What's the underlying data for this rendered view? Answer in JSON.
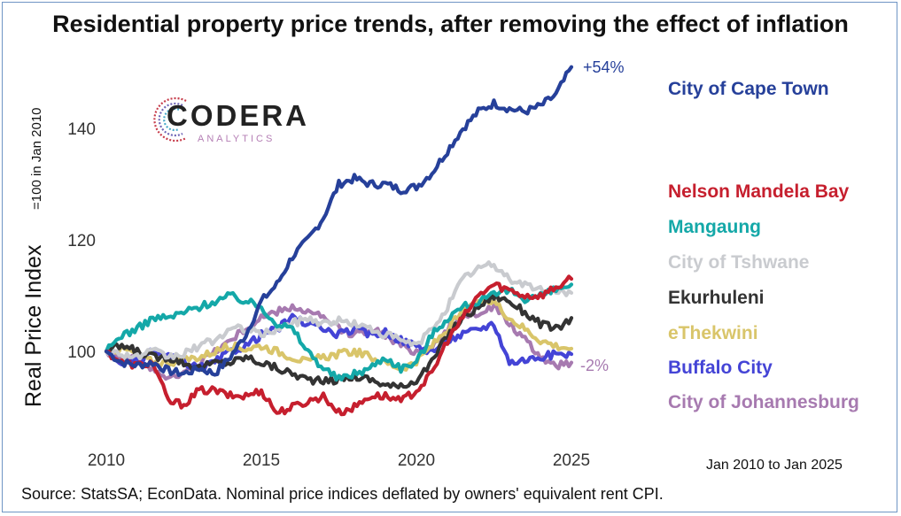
{
  "title": "Residential property price trends, after removing the effect of inflation",
  "source": "Source: StatsSA; EconData. Nominal price indices deflated by owners' equivalent rent CPI.",
  "period": "Jan 2010 to Jan 2025",
  "logo": {
    "name": "CODERA",
    "sub": "ANALYTICS"
  },
  "chart_data": {
    "type": "line",
    "ylabel": "Real Price Index",
    "ylabel_note": "=100 in Jan 2010",
    "xlim": [
      2010,
      2025.3
    ],
    "ylim": [
      88,
      152
    ],
    "x_ticks": [
      2010,
      2015,
      2020,
      2025
    ],
    "y_ticks": [
      100,
      120,
      140
    ],
    "grid": false,
    "annotations": [
      {
        "text": "+54%",
        "x": 2025,
        "y": 151,
        "color": "#26409a"
      },
      {
        "text": "-2%",
        "x": 2025,
        "y": 98,
        "color": "#a77ab0"
      }
    ],
    "series": [
      {
        "name": "City of Cape Town",
        "color": "#26409a",
        "points": [
          [
            2010,
            100
          ],
          [
            2010.5,
            98
          ],
          [
            2011,
            97.5
          ],
          [
            2011.5,
            98
          ],
          [
            2012,
            96.5
          ],
          [
            2012.5,
            96
          ],
          [
            2013,
            97
          ],
          [
            2013.5,
            96
          ],
          [
            2014,
            99
          ],
          [
            2014.5,
            103
          ],
          [
            2015,
            109
          ],
          [
            2015.5,
            112
          ],
          [
            2016,
            117
          ],
          [
            2016.5,
            120
          ],
          [
            2017,
            124
          ],
          [
            2017.5,
            130
          ],
          [
            2018,
            131
          ],
          [
            2018.5,
            130
          ],
          [
            2019,
            130
          ],
          [
            2019.5,
            129
          ],
          [
            2020,
            129.5
          ],
          [
            2020.5,
            132
          ],
          [
            2021,
            136
          ],
          [
            2021.5,
            140
          ],
          [
            2022,
            143
          ],
          [
            2022.5,
            144.5
          ],
          [
            2023,
            143.5
          ],
          [
            2023.5,
            143
          ],
          [
            2024,
            144
          ],
          [
            2024.5,
            146
          ],
          [
            2025,
            151
          ]
        ]
      },
      {
        "name": "Nelson Mandela Bay",
        "color": "#c61f2e",
        "points": [
          [
            2010,
            100
          ],
          [
            2010.5,
            98
          ],
          [
            2011,
            97.5
          ],
          [
            2011.5,
            98
          ],
          [
            2012,
            91
          ],
          [
            2012.5,
            90.5
          ],
          [
            2013,
            93
          ],
          [
            2013.5,
            93
          ],
          [
            2014,
            92
          ],
          [
            2014.5,
            92
          ],
          [
            2015,
            93
          ],
          [
            2015.5,
            89
          ],
          [
            2016,
            90
          ],
          [
            2016.5,
            91
          ],
          [
            2017,
            92
          ],
          [
            2017.5,
            89
          ],
          [
            2018,
            90
          ],
          [
            2018.5,
            92
          ],
          [
            2019,
            92
          ],
          [
            2019.5,
            91
          ],
          [
            2020,
            93
          ],
          [
            2020.5,
            96
          ],
          [
            2021,
            102
          ],
          [
            2021.5,
            106
          ],
          [
            2022,
            110
          ],
          [
            2022.5,
            112
          ],
          [
            2023,
            111
          ],
          [
            2023.5,
            110
          ],
          [
            2024,
            110
          ],
          [
            2024.5,
            111.5
          ],
          [
            2025,
            113
          ]
        ]
      },
      {
        "name": "Mangaung",
        "color": "#14a8a8",
        "points": [
          [
            2010,
            100
          ],
          [
            2010.5,
            103
          ],
          [
            2011,
            104
          ],
          [
            2011.5,
            106
          ],
          [
            2012,
            106
          ],
          [
            2012.5,
            107
          ],
          [
            2013,
            108
          ],
          [
            2013.5,
            109
          ],
          [
            2014,
            110
          ],
          [
            2014.5,
            109
          ],
          [
            2015,
            108
          ],
          [
            2015.5,
            105
          ],
          [
            2016,
            104
          ],
          [
            2016.5,
            100
          ],
          [
            2017,
            97
          ],
          [
            2017.5,
            95
          ],
          [
            2018,
            96
          ],
          [
            2018.5,
            97
          ],
          [
            2019,
            99
          ],
          [
            2019.5,
            97
          ],
          [
            2020,
            98
          ],
          [
            2020.5,
            103
          ],
          [
            2021,
            106
          ],
          [
            2021.5,
            108
          ],
          [
            2022,
            109
          ],
          [
            2022.5,
            110
          ],
          [
            2023,
            111
          ],
          [
            2023.5,
            109.5
          ],
          [
            2024,
            110
          ],
          [
            2024.5,
            111
          ],
          [
            2025,
            112
          ]
        ]
      },
      {
        "name": "City of Tshwane",
        "color": "#c9cbcf",
        "points": [
          [
            2010,
            100
          ],
          [
            2010.5,
            99.5
          ],
          [
            2011,
            99
          ],
          [
            2011.5,
            100
          ],
          [
            2012,
            99
          ],
          [
            2012.5,
            99.5
          ],
          [
            2013,
            101
          ],
          [
            2013.5,
            102
          ],
          [
            2014,
            104
          ],
          [
            2014.5,
            104
          ],
          [
            2015,
            103
          ],
          [
            2015.5,
            104
          ],
          [
            2016,
            105
          ],
          [
            2016.5,
            106
          ],
          [
            2017,
            105
          ],
          [
            2017.5,
            105.5
          ],
          [
            2018,
            105
          ],
          [
            2018.5,
            104
          ],
          [
            2019,
            103
          ],
          [
            2019.5,
            102
          ],
          [
            2020,
            101
          ],
          [
            2020.5,
            104
          ],
          [
            2021,
            108
          ],
          [
            2021.5,
            113
          ],
          [
            2022,
            115
          ],
          [
            2022.5,
            115.5
          ],
          [
            2023,
            113
          ],
          [
            2023.5,
            112
          ],
          [
            2024,
            111
          ],
          [
            2024.5,
            111
          ],
          [
            2025,
            110.5
          ]
        ]
      },
      {
        "name": "Ekurhuleni",
        "color": "#333333",
        "points": [
          [
            2010,
            100
          ],
          [
            2010.5,
            101
          ],
          [
            2011,
            100
          ],
          [
            2011.5,
            99
          ],
          [
            2012,
            99
          ],
          [
            2012.5,
            98
          ],
          [
            2013,
            97
          ],
          [
            2013.5,
            98
          ],
          [
            2014,
            98
          ],
          [
            2014.5,
            99
          ],
          [
            2015,
            98
          ],
          [
            2015.5,
            97
          ],
          [
            2016,
            96
          ],
          [
            2016.5,
            95
          ],
          [
            2017,
            94.5
          ],
          [
            2017.5,
            95
          ],
          [
            2018,
            95.5
          ],
          [
            2018.5,
            95
          ],
          [
            2019,
            94
          ],
          [
            2019.5,
            93.5
          ],
          [
            2020,
            95
          ],
          [
            2020.5,
            98
          ],
          [
            2021,
            103
          ],
          [
            2021.5,
            106
          ],
          [
            2022,
            108
          ],
          [
            2022.5,
            110
          ],
          [
            2023,
            109
          ],
          [
            2023.5,
            107
          ],
          [
            2024,
            105
          ],
          [
            2024.5,
            104
          ],
          [
            2025,
            106
          ]
        ]
      },
      {
        "name": "eThekwini",
        "color": "#d9c56a",
        "points": [
          [
            2010,
            100
          ],
          [
            2010.5,
            100.5
          ],
          [
            2011,
            99.5
          ],
          [
            2011.5,
            98
          ],
          [
            2012,
            98
          ],
          [
            2012.5,
            98.5
          ],
          [
            2013,
            99
          ],
          [
            2013.5,
            100
          ],
          [
            2014,
            101
          ],
          [
            2014.5,
            100.5
          ],
          [
            2015,
            101
          ],
          [
            2015.5,
            100
          ],
          [
            2016,
            99
          ],
          [
            2016.5,
            98
          ],
          [
            2017,
            99
          ],
          [
            2017.5,
            99.5
          ],
          [
            2018,
            100
          ],
          [
            2018.5,
            99
          ],
          [
            2019,
            98
          ],
          [
            2019.5,
            97
          ],
          [
            2020,
            98
          ],
          [
            2020.5,
            101
          ],
          [
            2021,
            104
          ],
          [
            2021.5,
            107
          ],
          [
            2022,
            108.5
          ],
          [
            2022.5,
            109
          ],
          [
            2023,
            106
          ],
          [
            2023.5,
            104
          ],
          [
            2024,
            102
          ],
          [
            2024.5,
            101
          ],
          [
            2025,
            100.5
          ]
        ]
      },
      {
        "name": "Buffalo City",
        "color": "#4444d6",
        "points": [
          [
            2010,
            100
          ],
          [
            2010.5,
            98
          ],
          [
            2011,
            98
          ],
          [
            2011.5,
            100
          ],
          [
            2012,
            99
          ],
          [
            2012.5,
            98
          ],
          [
            2013,
            97
          ],
          [
            2013.5,
            98
          ],
          [
            2014,
            100
          ],
          [
            2014.5,
            101
          ],
          [
            2015,
            103
          ],
          [
            2015.5,
            104
          ],
          [
            2016,
            106
          ],
          [
            2016.5,
            105
          ],
          [
            2017,
            104
          ],
          [
            2017.5,
            103
          ],
          [
            2018,
            104
          ],
          [
            2018.5,
            103
          ],
          [
            2019,
            103.5
          ],
          [
            2019.5,
            102
          ],
          [
            2020,
            101
          ],
          [
            2020.5,
            100
          ],
          [
            2021,
            102
          ],
          [
            2021.5,
            103
          ],
          [
            2022,
            104
          ],
          [
            2022.5,
            105
          ],
          [
            2023,
            98
          ],
          [
            2023.5,
            98.5
          ],
          [
            2024,
            99
          ],
          [
            2024.5,
            99.5
          ],
          [
            2025,
            99.5
          ]
        ]
      },
      {
        "name": "City of Johannesburg",
        "color": "#a77ab0",
        "points": [
          [
            2010,
            100
          ],
          [
            2010.5,
            99
          ],
          [
            2011,
            98.5
          ],
          [
            2011.5,
            97
          ],
          [
            2012,
            95
          ],
          [
            2012.5,
            96
          ],
          [
            2013,
            98
          ],
          [
            2013.5,
            100
          ],
          [
            2014,
            102
          ],
          [
            2014.5,
            104
          ],
          [
            2015,
            106
          ],
          [
            2015.5,
            107
          ],
          [
            2016,
            108
          ],
          [
            2016.5,
            107
          ],
          [
            2017,
            106
          ],
          [
            2017.5,
            104
          ],
          [
            2018,
            103
          ],
          [
            2018.5,
            104
          ],
          [
            2019,
            103
          ],
          [
            2019.5,
            101
          ],
          [
            2020,
            100
          ],
          [
            2020.5,
            101
          ],
          [
            2021,
            104
          ],
          [
            2021.5,
            106
          ],
          [
            2022,
            107
          ],
          [
            2022.5,
            108
          ],
          [
            2023,
            105
          ],
          [
            2023.5,
            102
          ],
          [
            2024,
            99
          ],
          [
            2024.5,
            97.5
          ],
          [
            2025,
            98
          ]
        ]
      }
    ]
  }
}
